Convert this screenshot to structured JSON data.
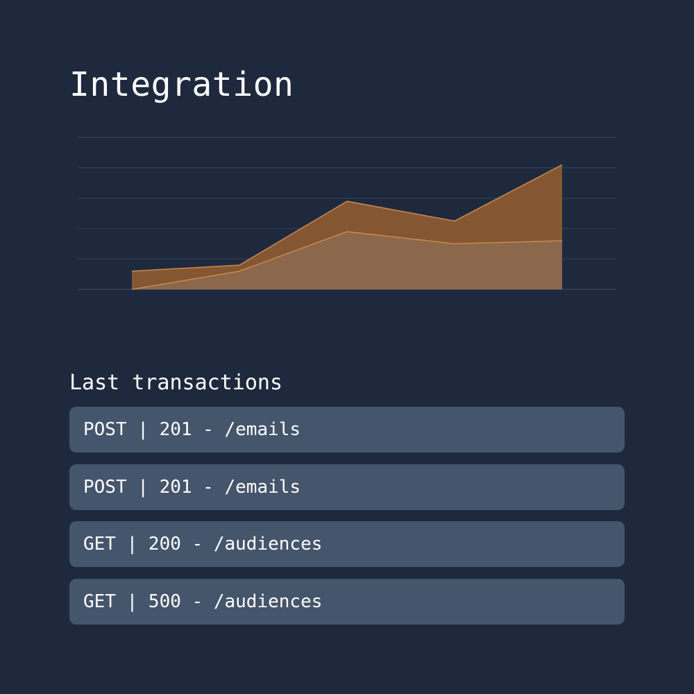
{
  "header": {
    "title": "Integration"
  },
  "chart_data": {
    "type": "area",
    "title": "",
    "xlabel": "",
    "ylabel": "",
    "x": [
      1,
      2,
      3,
      4,
      5
    ],
    "ylim": [
      0,
      5
    ],
    "grid": true,
    "series": [
      {
        "values": [
          0.6,
          0.8,
          2.9,
          2.25,
          4.1
        ]
      },
      {
        "values": [
          0.0,
          0.6,
          1.9,
          1.5,
          1.6
        ]
      }
    ]
  },
  "transactions": {
    "title": "Last transactions",
    "items": [
      {
        "label": "POST | 201 - /emails"
      },
      {
        "label": "POST | 201 - /emails"
      },
      {
        "label": "GET | 200 - /audiences"
      },
      {
        "label": "GET | 500 - /audiences"
      }
    ]
  },
  "colors": {
    "background": "#1e293e",
    "row_background": "#45556c",
    "area_dark": "#8a5a32",
    "area_light": "#8c6a4e",
    "line": "#c98a52",
    "grid": "#34425a"
  }
}
